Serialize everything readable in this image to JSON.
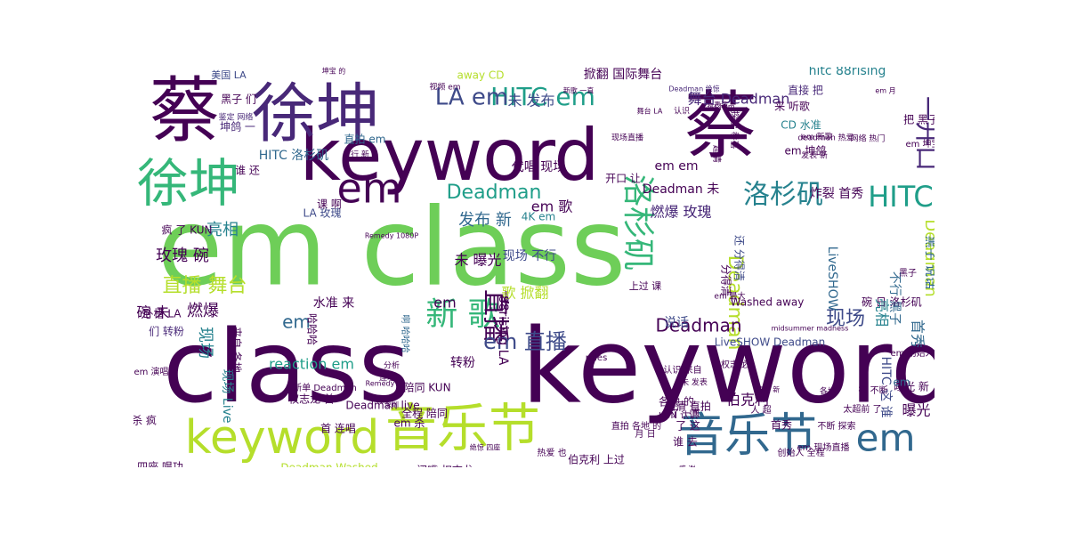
{
  "colors": {
    "background": "#ffffff",
    "palette": [
      "#440154",
      "#482878",
      "#3e4a89",
      "#31688e",
      "#26828e",
      "#1f9e89",
      "#35b779",
      "#6ece58",
      "#b5de2b",
      "#fde725"
    ]
  },
  "words": [
    {
      "text": "em class",
      "color": "#6ece58"
    },
    {
      "text": "class",
      "color": "#440154"
    },
    {
      "text": "keyword",
      "color": "#440154"
    },
    {
      "text": "keyword",
      "color": "#440154"
    },
    {
      "text": "蔡",
      "color": "#440154"
    },
    {
      "text": "徐坤",
      "color": "#482878"
    },
    {
      "text": "蔡",
      "color": "#440154"
    },
    {
      "text": "徐坤",
      "color": "#35b779"
    },
    {
      "text": "keyword",
      "color": "#b5de2b"
    },
    {
      "text": "音乐节",
      "color": "#b5de2b"
    },
    {
      "text": "音乐节",
      "color": "#31688e"
    },
    {
      "text": "em",
      "color": "#31688e"
    },
    {
      "text": "em",
      "color": "#440154"
    },
    {
      "text": "HITC em",
      "color": "#1f9e89"
    },
    {
      "text": "LA em",
      "color": "#3e4a89"
    },
    {
      "text": "新 歌",
      "color": "#35b779"
    },
    {
      "text": "洛杉矶",
      "color": "#35b779"
    },
    {
      "text": "洛杉矶",
      "color": "#26828e"
    },
    {
      "text": "HITC",
      "color": "#1f9e89"
    },
    {
      "text": "一开口",
      "color": "#482878"
    },
    {
      "text": "直播",
      "color": "#440154"
    },
    {
      "text": "em 直播",
      "color": "#3e4a89"
    },
    {
      "text": "直播 舞台",
      "color": "#b5de2b"
    },
    {
      "text": "Deadman",
      "color": "#1f9e89"
    },
    {
      "text": "Deadman",
      "color": "#b5de2b"
    },
    {
      "text": "现场",
      "color": "#3e4a89"
    },
    {
      "text": "玫瑰 碗",
      "color": "#440154"
    },
    {
      "text": "亮相",
      "color": "#26828e"
    },
    {
      "text": "发布 新",
      "color": "#31688e"
    },
    {
      "text": "燃爆 玫瑰",
      "color": "#482878"
    },
    {
      "text": "炸裂 首秀",
      "color": "#440154"
    },
    {
      "text": "舞台 Deadman",
      "color": "#482878"
    },
    {
      "text": "掀翻 国际舞台",
      "color": "#440154"
    },
    {
      "text": "hitc 88rising",
      "color": "#26828e"
    },
    {
      "text": "未 发布",
      "color": "#3e4a89"
    },
    {
      "text": "em em",
      "color": "#440154"
    },
    {
      "text": "代唱 现场",
      "color": "#440154"
    },
    {
      "text": "谁 还",
      "color": "#440154"
    },
    {
      "text": "HITC 洛杉矶",
      "color": "#31688e"
    },
    {
      "text": "黑子 们",
      "color": "#440154"
    },
    {
      "text": "坤鸽 一",
      "color": "#482878"
    },
    {
      "text": "美国 LA",
      "color": "#3e4a89"
    },
    {
      "text": "away CD",
      "color": "#b5de2b"
    },
    {
      "text": "直接 把",
      "color": "#482878"
    },
    {
      "text": "来 听歌",
      "color": "#440154"
    },
    {
      "text": "CD 水准",
      "color": "#26828e"
    },
    {
      "text": "em 坤鸽",
      "color": "#440154"
    },
    {
      "text": "em 歌",
      "color": "#440154"
    },
    {
      "text": "歌 掀翻",
      "color": "#b5de2b"
    },
    {
      "text": "未 曝光",
      "color": "#440154"
    },
    {
      "text": "现场 不行",
      "color": "#3e4a89"
    },
    {
      "text": "碗 未",
      "color": "#440154"
    },
    {
      "text": "燃爆",
      "color": "#440154"
    },
    {
      "text": "Deadman",
      "color": "#440154"
    },
    {
      "text": "现场",
      "color": "#26828e"
    },
    {
      "text": "说话",
      "color": "#3e4a89"
    },
    {
      "text": "reaction em",
      "color": "#1f9e89"
    },
    {
      "text": "转粉",
      "color": "#440154"
    },
    {
      "text": "88rising LA",
      "color": "#440154"
    },
    {
      "text": "Washed away",
      "color": "#440154"
    },
    {
      "text": "水准 来",
      "color": "#440154"
    },
    {
      "text": "曝光 新",
      "color": "#440154"
    },
    {
      "text": "em",
      "color": "#31688e"
    },
    {
      "text": "em",
      "color": "#440154"
    },
    {
      "text": "首秀",
      "color": "#31688e"
    },
    {
      "text": "碗 日 洛杉矶",
      "color": "#440154"
    },
    {
      "text": "Deadman",
      "color": "#b5de2b"
    },
    {
      "text": "黑子 说话",
      "color": "#31688e"
    },
    {
      "text": "不行 黑子",
      "color": "#31688e"
    },
    {
      "text": "HITC 这 谁",
      "color": "#3e4a89"
    },
    {
      "text": "伯克利",
      "color": "#440154"
    },
    {
      "text": "Deadman 未",
      "color": "#440154"
    },
    {
      "text": "分得清",
      "color": "#440154"
    },
    {
      "text": "还 分得清",
      "color": "#3e4a89"
    },
    {
      "text": "LA 玫瑰",
      "color": "#3e4a89"
    },
    {
      "text": "疯 了 KUN",
      "color": "#440154"
    },
    {
      "text": "卧槽 LA",
      "color": "#440154"
    },
    {
      "text": "们 转粉",
      "color": "#482878"
    },
    {
      "text": "现场 Live",
      "color": "#26828e"
    },
    {
      "text": "杀 疯",
      "color": "#440154"
    },
    {
      "text": "Deadman live",
      "color": "#440154"
    },
    {
      "text": "em 杀",
      "color": "#440154"
    },
    {
      "text": "Deadman Washed",
      "color": "#b5de2b"
    },
    {
      "text": "闭嘴 权志龙",
      "color": "#440154"
    },
    {
      "text": "伯克利 上过",
      "color": "#440154"
    },
    {
      "text": "谁 去",
      "color": "#440154"
    },
    {
      "text": "了 这",
      "color": "#440154"
    },
    {
      "text": "把 黑子",
      "color": "#440154"
    },
    {
      "text": "开口 让",
      "color": "#440154"
    },
    {
      "text": "4K em",
      "color": "#26828e"
    },
    {
      "text": "曝光 新",
      "color": "#440154"
    },
    {
      "text": "亮相",
      "color": "#26828e"
    },
    {
      "text": "超清 直拍",
      "color": "#440154"
    },
    {
      "text": "em",
      "color": "#31688e"
    },
    {
      "text": "em 演唱",
      "color": "#440154"
    },
    {
      "text": "鉴定 网络",
      "color": "#482878"
    },
    {
      "text": "坤宝 的",
      "color": "#440154"
    },
    {
      "text": "视频 em",
      "color": "#440154"
    },
    {
      "text": "Deadman 绝惊",
      "color": "#482878"
    },
    {
      "text": "em 月",
      "color": "#440154"
    },
    {
      "text": "发行 新",
      "color": "#440154"
    },
    {
      "text": "直拍 em",
      "color": "#31688e"
    },
    {
      "text": "课 啊",
      "color": "#440154"
    },
    {
      "text": "LiveSHOW Deadman",
      "color": "#3e4a89"
    },
    {
      "text": "上过 课",
      "color": "#440154"
    },
    {
      "text": "LiveSHOW",
      "color": "#31688e"
    },
    {
      "text": "黑子",
      "color": "#440154"
    },
    {
      "text": "了 一直",
      "color": "#440154"
    },
    {
      "text": "全程 陪同",
      "color": "#440154"
    },
    {
      "text": "陪同 KUN",
      "color": "#440154"
    },
    {
      "text": "各地 的",
      "color": "#440154"
    },
    {
      "text": "KUN 认识",
      "color": "#440154"
    },
    {
      "text": "月 日",
      "color": "#440154"
    },
    {
      "text": "四座 唱功",
      "color": "#440154"
    },
    {
      "text": "首 连唱",
      "color": "#440154"
    },
    {
      "text": "权志龙 首",
      "color": "#440154"
    },
    {
      "text": "哈哈哈",
      "color": "#440154"
    },
    {
      "text": "啊 哈哈哈",
      "color": "#31688e"
    },
    {
      "text": "新单 Deadman",
      "color": "#440154"
    },
    {
      "text": "来自 各地",
      "color": "#440154"
    },
    {
      "text": "em 创始人",
      "color": "#440154"
    },
    {
      "text": "首秀",
      "color": "#440154"
    },
    {
      "text": "em 现场直播",
      "color": "#440154"
    },
    {
      "text": "创始人 全程",
      "color": "#440154"
    },
    {
      "text": "也 在",
      "color": "#440154"
    },
    {
      "text": "音乐 人",
      "color": "#440154"
    },
    {
      "text": "分析 reaction",
      "color": "#440154"
    },
    {
      "text": "在 不断",
      "color": "#440154"
    },
    {
      "text": "太超前 了",
      "color": "#440154"
    },
    {
      "text": "em 坤宝",
      "color": "#440154"
    },
    {
      "text": "em 新歌",
      "color": "#440154"
    },
    {
      "text": "发表 新",
      "color": "#440154"
    },
    {
      "text": "deadman 热爱",
      "color": "#440154"
    },
    {
      "text": "绝惊 四座",
      "color": "#440154"
    },
    {
      "text": "热爱 也",
      "color": "#440154"
    },
    {
      "text": "连唱",
      "color": "#440154"
    },
    {
      "text": "人 超",
      "color": "#440154"
    },
    {
      "text": "的 音乐",
      "color": "#440154"
    },
    {
      "text": "分析",
      "color": "#440154"
    },
    {
      "text": "直拍 各地 的",
      "color": "#440154"
    },
    {
      "text": "不断 探索",
      "color": "#440154"
    },
    {
      "text": "认识 来自",
      "color": "#440154"
    },
    {
      "text": "演唱 新",
      "color": "#440154"
    },
    {
      "text": "各地",
      "color": "#440154"
    },
    {
      "text": "表演",
      "color": "#440154"
    },
    {
      "text": "认识",
      "color": "#440154"
    },
    {
      "text": "超清",
      "color": "#440154"
    },
    {
      "text": "探索 恭喜",
      "color": "#440154"
    },
    {
      "text": "未 发表",
      "color": "#440154"
    },
    {
      "text": "网络 热门",
      "color": "#440154"
    },
    {
      "text": "热门 em",
      "color": "#440154"
    },
    {
      "text": "舞台 LA",
      "color": "#440154"
    },
    {
      "text": "新歌 一直",
      "color": "#440154"
    },
    {
      "text": "深圳",
      "color": "#440154"
    },
    {
      "text": "权志龙",
      "color": "#440154"
    },
    {
      "text": "midsummer madness",
      "color": "#440154"
    },
    {
      "text": "Remedy",
      "color": "#440154"
    },
    {
      "text": "rules",
      "color": "#440154"
    },
    {
      "text": "感 谢",
      "color": "#440154"
    },
    {
      "text": "em 最大",
      "color": "#440154"
    },
    {
      "text": "Remedy 1080P",
      "color": "#440154"
    },
    {
      "text": "现场直播",
      "color": "#440154"
    },
    {
      "text": "em 新歌",
      "color": "#440154"
    },
    {
      "text": "Live em",
      "color": "#440154"
    },
    {
      "text": "国际舞台",
      "color": "#440154"
    },
    {
      "text": "美国 LA",
      "color": "#440154"
    }
  ]
}
